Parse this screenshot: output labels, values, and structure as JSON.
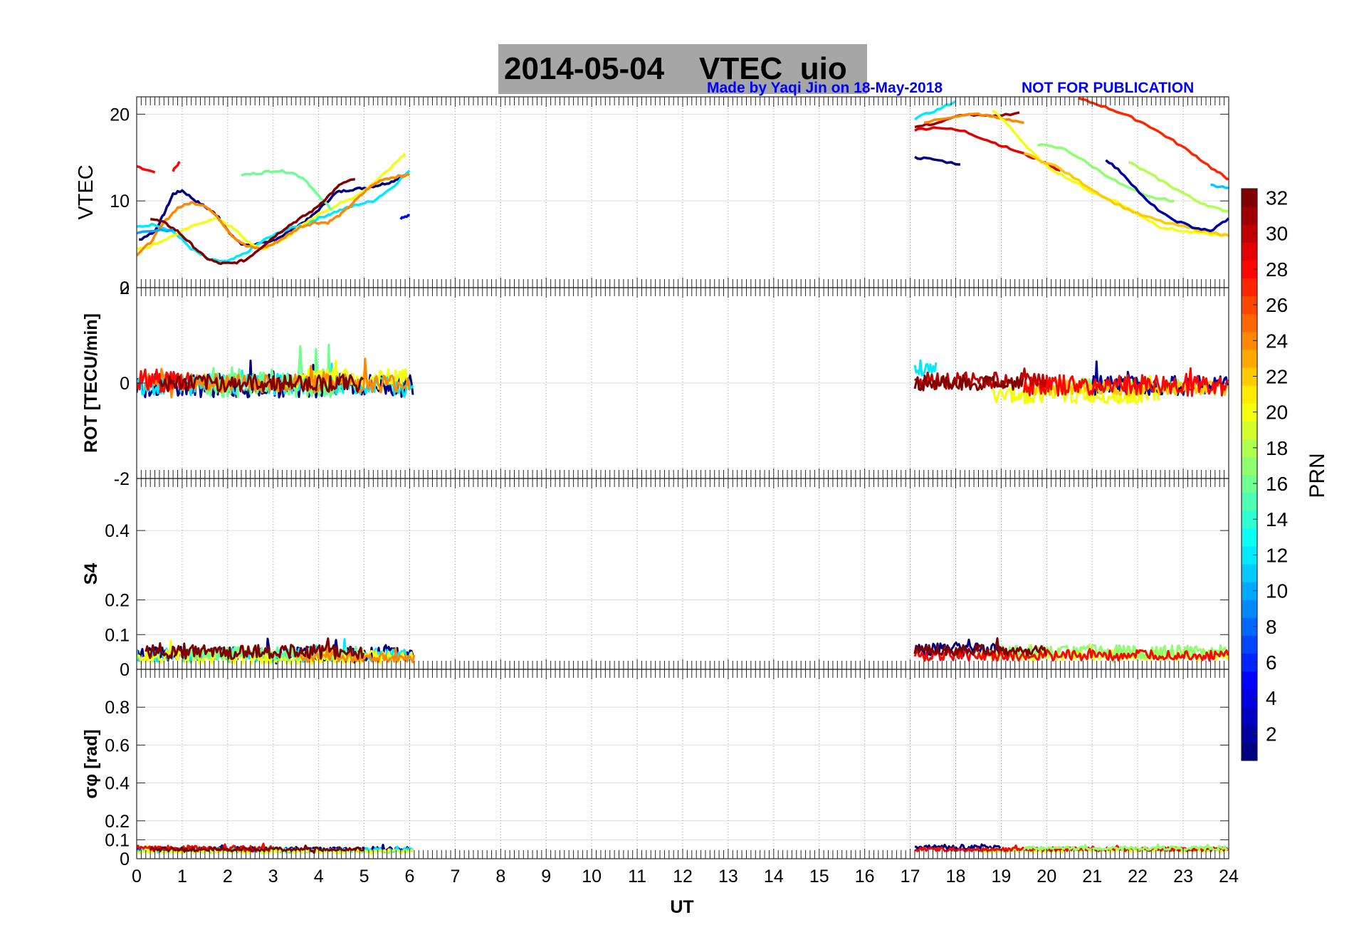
{
  "figure": {
    "title_date": "2014-05-04",
    "title_label": "VTEC  uio",
    "credit": "Made by Yaqi Jin on 18-May-2018",
    "notice": "NOT FOR PUBLICATION",
    "xlabel": "UT",
    "colorbar_label": "PRN",
    "colors": {
      "title_box": "#a6a6a6",
      "credit_text": "#0000ff",
      "grid": "#dddddd"
    }
  },
  "chart_data": {
    "type": "line",
    "x_ticks": [
      "0",
      "1",
      "2",
      "3",
      "4",
      "5",
      "6",
      "7",
      "8",
      "9",
      "10",
      "11",
      "12",
      "13",
      "14",
      "15",
      "16",
      "17",
      "18",
      "19",
      "20",
      "21",
      "22",
      "23",
      "24"
    ],
    "xlim": [
      0,
      24
    ],
    "panels": [
      {
        "id": "vtec",
        "ylabel": "VTEC",
        "ylim": [
          0,
          22
        ],
        "yticks": [
          {
            "v": 0,
            "label": "0"
          },
          {
            "v": 10,
            "label": "10"
          },
          {
            "v": 20,
            "label": "20"
          }
        ],
        "series": [
          {
            "prn": 28,
            "x": [
              0,
              0.4
            ],
            "y": [
              14,
              13.3
            ]
          },
          {
            "prn": 28,
            "x": [
              0.8,
              0.95
            ],
            "y": [
              13.5,
              14.5
            ]
          },
          {
            "prn": 1,
            "x": [
              0.05,
              0.4,
              0.6,
              0.8,
              1.0,
              1.3,
              1.6,
              1.8,
              2.0,
              2.3,
              2.6,
              2.9,
              3.2,
              3.5,
              3.8,
              4.1,
              4.4,
              4.7,
              5.0,
              5.3,
              5.6,
              5.9
            ],
            "y": [
              5.5,
              6.5,
              8.5,
              10.8,
              11.2,
              10.0,
              9.0,
              8.2,
              6.5,
              5.0,
              5.0,
              5.2,
              6.0,
              7.0,
              8.0,
              9.5,
              11.0,
              11.3,
              11.5,
              11.8,
              12.2,
              13.0
            ]
          },
          {
            "prn": 5,
            "x": [
              5.8,
              6.0
            ],
            "y": [
              8.0,
              8.3
            ]
          },
          {
            "prn": 12,
            "x": [
              0.0,
              0.4,
              0.8,
              1.2,
              1.6,
              2.0,
              2.4,
              2.8,
              3.2,
              3.6,
              4.0,
              4.4,
              4.8,
              5.2,
              5.6,
              6.0
            ],
            "y": [
              7.0,
              7.3,
              6.5,
              4.5,
              3.2,
              3.0,
              4.0,
              5.5,
              6.5,
              7.2,
              8.0,
              8.8,
              9.5,
              10.0,
              11.5,
              13.5
            ]
          },
          {
            "prn": 20,
            "x": [
              0.0,
              0.3,
              0.6,
              1.0,
              1.4,
              1.8,
              2.2,
              2.5,
              2.8,
              3.2,
              3.6,
              4.0,
              4.4,
              4.8,
              5.2,
              5.6,
              5.9
            ],
            "y": [
              4.5,
              4.8,
              5.5,
              6.5,
              7.5,
              8.0,
              6.5,
              5.0,
              4.5,
              5.5,
              7.0,
              8.5,
              9.5,
              10.5,
              12.0,
              14.0,
              15.5
            ]
          },
          {
            "prn": 24,
            "x": [
              0.0,
              0.3,
              0.6,
              0.9,
              1.2,
              1.5,
              1.8,
              2.1,
              2.4,
              2.7,
              3.0,
              3.3,
              3.6,
              3.9,
              4.2,
              4.5,
              4.8,
              5.1,
              5.4,
              5.7,
              6.0
            ],
            "y": [
              3.8,
              5.2,
              7.5,
              9.2,
              9.8,
              9.5,
              8.0,
              6.0,
              4.8,
              4.5,
              5.0,
              6.0,
              7.0,
              7.5,
              7.5,
              8.5,
              10.0,
              11.5,
              12.5,
              12.8,
              13.0
            ]
          },
          {
            "prn": 16,
            "x": [
              2.3,
              2.7,
              3.0,
              3.4,
              3.7,
              4.0,
              4.3
            ],
            "y": [
              13.0,
              13.2,
              13.5,
              13.3,
              12.5,
              10.5,
              9.0
            ]
          },
          {
            "prn": 32,
            "x": [
              0.3,
              0.6,
              0.9,
              1.2,
              1.5,
              1.8,
              2.1,
              2.4,
              2.7,
              3.0,
              3.3,
              3.6,
              3.9,
              4.2,
              4.5,
              4.8
            ],
            "y": [
              8.0,
              7.5,
              6.5,
              5.0,
              3.5,
              2.8,
              2.8,
              3.2,
              4.5,
              5.8,
              7.0,
              8.0,
              9.0,
              10.5,
              12.0,
              12.5
            ]
          },
          {
            "prn": 10,
            "x": [
              0.0,
              0.8
            ],
            "y": [
              6.3,
              6.7
            ]
          },
          {
            "prn": 12,
            "x": [
              17.1,
              17.6,
              18.0
            ],
            "y": [
              19.5,
              20.5,
              21.5
            ]
          },
          {
            "prn": 1,
            "x": [
              17.1,
              17.5,
              18.1
            ],
            "y": [
              15.0,
              14.8,
              14.2
            ]
          },
          {
            "prn": 29,
            "x": [
              17.1,
              17.6,
              18.2,
              18.7,
              19.2,
              19.8,
              20.3
            ],
            "y": [
              18.2,
              18.5,
              18.0,
              17.0,
              16.0,
              14.8,
              13.5
            ]
          },
          {
            "prn": 31,
            "x": [
              17.1,
              17.6,
              18.2,
              18.8,
              19.4
            ],
            "y": [
              18.5,
              19.0,
              20.0,
              19.7,
              20.2
            ]
          },
          {
            "prn": 24,
            "x": [
              17.3,
              18.0,
              18.5,
              19.0,
              19.5
            ],
            "y": [
              19.0,
              19.8,
              20.0,
              19.5,
              19.0
            ]
          },
          {
            "prn": 20,
            "x": [
              18.8,
              19.2,
              19.6,
              20.0,
              20.5,
              21.0,
              21.5,
              22.0,
              22.5,
              23.0,
              23.5,
              24.0
            ],
            "y": [
              20.5,
              18.5,
              16.0,
              14.0,
              12.5,
              11.0,
              10.0,
              8.5,
              7.0,
              6.5,
              6.2,
              6.0
            ]
          },
          {
            "prn": 27,
            "x": [
              20.7,
              21.2,
              21.7,
              22.2,
              22.7,
              23.2,
              23.7,
              24.0
            ],
            "y": [
              21.8,
              21.0,
              20.0,
              18.8,
              17.2,
              15.5,
              13.5,
              12.5
            ]
          },
          {
            "prn": 17,
            "x": [
              19.8,
              20.4,
              21.0,
              21.6,
              22.2,
              22.8
            ],
            "y": [
              16.5,
              16.0,
              14.0,
              12.0,
              10.5,
              10.0
            ]
          },
          {
            "prn": 22,
            "x": [
              19.5,
              20.2,
              20.8,
              21.4,
              22.0,
              22.6,
              23.2,
              23.8,
              24.0
            ],
            "y": [
              15.5,
              14.0,
              12.0,
              10.0,
              8.5,
              7.5,
              6.8,
              6.2,
              6.0
            ]
          },
          {
            "prn": 18,
            "x": [
              21.8,
              22.3,
              22.8,
              23.3,
              23.8,
              24.0
            ],
            "y": [
              14.5,
              13.0,
              11.5,
              10.0,
              9.0,
              8.8
            ]
          },
          {
            "prn": 2,
            "x": [
              21.3,
              21.7,
              22.2,
              22.7,
              23.2,
              23.6,
              24.0
            ],
            "y": [
              14.8,
              13.0,
              10.0,
              8.0,
              7.0,
              6.5,
              8.0
            ]
          },
          {
            "prn": 11,
            "x": [
              23.6,
              24.0
            ],
            "y": [
              11.8,
              11.5
            ]
          }
        ]
      },
      {
        "id": "rot",
        "ylabel": "ROT [TECU/min]",
        "ylim": [
          -2,
          2
        ],
        "yticks": [
          {
            "v": -2,
            "label": "-2"
          },
          {
            "v": 0,
            "label": "0"
          },
          {
            "v": 2,
            "label": "2"
          }
        ],
        "series": [
          {
            "prn": 1,
            "t0": 0.0,
            "t1": 6.1,
            "amp": 0.25,
            "off": -0.05
          },
          {
            "prn": 12,
            "t0": 0.0,
            "t1": 6.1,
            "amp": 0.22,
            "off": -0.02
          },
          {
            "prn": 16,
            "t0": 1.5,
            "t1": 4.5,
            "amp": 0.3,
            "off": 0.0
          },
          {
            "prn": 20,
            "t0": 3.5,
            "t1": 6.0,
            "amp": 0.22,
            "off": 0.08
          },
          {
            "prn": 24,
            "t0": 0.2,
            "t1": 6.0,
            "amp": 0.2,
            "off": 0.0
          },
          {
            "prn": 28,
            "t0": 0.0,
            "t1": 1.2,
            "amp": 0.25,
            "off": 0.05
          },
          {
            "prn": 32,
            "t0": 0.5,
            "t1": 5.0,
            "amp": 0.18,
            "off": 0.0
          },
          {
            "prn": 12,
            "t0": 17.1,
            "t1": 17.6,
            "amp": 0.15,
            "off": 0.3
          },
          {
            "prn": 20,
            "t0": 18.8,
            "t1": 22.5,
            "amp": 0.18,
            "off": -0.25
          },
          {
            "prn": 17,
            "t0": 20.0,
            "t1": 23.0,
            "amp": 0.15,
            "off": -0.05
          },
          {
            "prn": 2,
            "t0": 21.0,
            "t1": 24.0,
            "amp": 0.2,
            "off": -0.05
          },
          {
            "prn": 22,
            "t0": 19.5,
            "t1": 24.0,
            "amp": 0.15,
            "off": -0.1
          },
          {
            "prn": 28,
            "t0": 19.5,
            "t1": 24.0,
            "amp": 0.22,
            "off": -0.05
          },
          {
            "prn": 30,
            "t0": 17.1,
            "t1": 20.0,
            "amp": 0.18,
            "off": 0.05
          },
          {
            "prn": 32,
            "t0": 17.1,
            "t1": 19.5,
            "amp": 0.16,
            "off": 0.0
          }
        ]
      },
      {
        "id": "s4",
        "ylabel": "S4",
        "ylim": [
          0,
          0.55
        ],
        "yticks": [
          {
            "v": 0,
            "label": "0"
          },
          {
            "v": 0.1,
            "label": "0.1"
          },
          {
            "v": 0.2,
            "label": "0.2"
          },
          {
            "v": 0.4,
            "label": "0.4"
          }
        ],
        "series": [
          {
            "prn": 1,
            "t0": 0.0,
            "t1": 6.1,
            "amp": 0.02,
            "off": 0.045
          },
          {
            "prn": 12,
            "t0": 0.0,
            "t1": 6.1,
            "amp": 0.02,
            "off": 0.04
          },
          {
            "prn": 20,
            "t0": 0.0,
            "t1": 6.1,
            "amp": 0.02,
            "off": 0.035
          },
          {
            "prn": 16,
            "t0": 1.0,
            "t1": 5.0,
            "amp": 0.02,
            "off": 0.045
          },
          {
            "prn": 24,
            "t0": 3.5,
            "t1": 6.1,
            "amp": 0.015,
            "off": 0.035
          },
          {
            "prn": 32,
            "t0": 0.2,
            "t1": 5.0,
            "amp": 0.02,
            "off": 0.05
          },
          {
            "prn": 1,
            "t0": 17.1,
            "t1": 19.0,
            "amp": 0.02,
            "off": 0.055
          },
          {
            "prn": 20,
            "t0": 18.5,
            "t1": 24.0,
            "amp": 0.015,
            "off": 0.04
          },
          {
            "prn": 17,
            "t0": 19.0,
            "t1": 24.0,
            "amp": 0.02,
            "off": 0.05
          },
          {
            "prn": 28,
            "t0": 17.1,
            "t1": 24.0,
            "amp": 0.015,
            "off": 0.04
          },
          {
            "prn": 32,
            "t0": 17.1,
            "t1": 20.0,
            "amp": 0.015,
            "off": 0.055
          }
        ]
      },
      {
        "id": "sigma",
        "ylabel": "σφ [rad]",
        "ylim": [
          0,
          1.0
        ],
        "yticks": [
          {
            "v": 0,
            "label": "0"
          },
          {
            "v": 0.1,
            "label": "0.1"
          },
          {
            "v": 0.2,
            "label": "0.2"
          },
          {
            "v": 0.4,
            "label": "0.4"
          },
          {
            "v": 0.6,
            "label": "0.6"
          },
          {
            "v": 0.8,
            "label": "0.8"
          }
        ],
        "series": [
          {
            "prn": 1,
            "t0": 0.0,
            "t1": 6.1,
            "amp": 0.012,
            "off": 0.05
          },
          {
            "prn": 12,
            "t0": 0.0,
            "t1": 6.1,
            "amp": 0.012,
            "off": 0.045
          },
          {
            "prn": 20,
            "t0": 0.0,
            "t1": 6.1,
            "amp": 0.01,
            "off": 0.04
          },
          {
            "prn": 28,
            "t0": 0.0,
            "t1": 3.0,
            "amp": 0.015,
            "off": 0.055
          },
          {
            "prn": 32,
            "t0": 0.3,
            "t1": 5.0,
            "amp": 0.01,
            "off": 0.05
          },
          {
            "prn": 1,
            "t0": 17.1,
            "t1": 19.0,
            "amp": 0.012,
            "off": 0.06
          },
          {
            "prn": 20,
            "t0": 18.5,
            "t1": 24.0,
            "amp": 0.01,
            "off": 0.045
          },
          {
            "prn": 28,
            "t0": 17.1,
            "t1": 24.0,
            "amp": 0.01,
            "off": 0.05
          },
          {
            "prn": 17,
            "t0": 19.5,
            "t1": 24.0,
            "amp": 0.01,
            "off": 0.055
          }
        ]
      }
    ],
    "colorbar": {
      "label": "PRN",
      "range": [
        1,
        32
      ],
      "ticks": [
        "2",
        "4",
        "6",
        "8",
        "10",
        "12",
        "14",
        "16",
        "18",
        "20",
        "22",
        "24",
        "26",
        "28",
        "30",
        "32"
      ]
    }
  }
}
